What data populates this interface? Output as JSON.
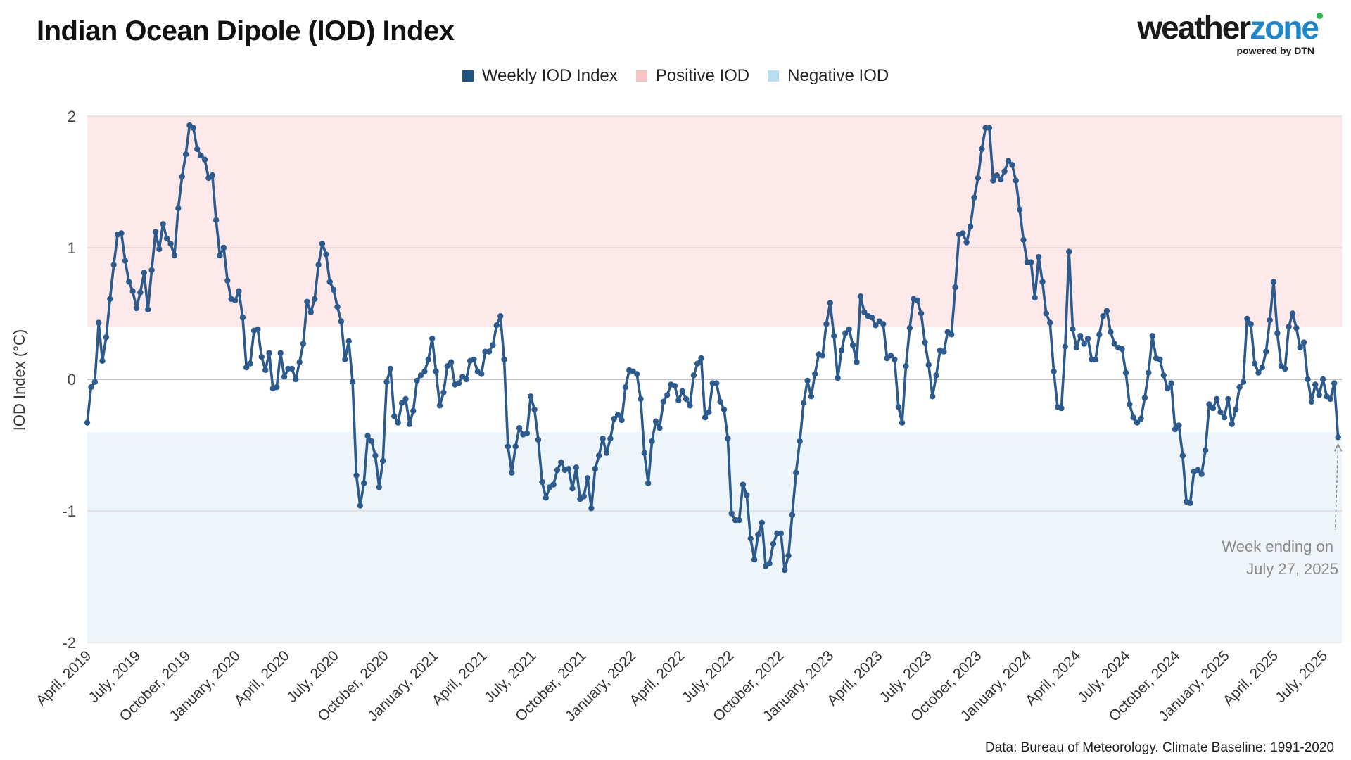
{
  "title": "Indian Ocean Dipole (IOD) Index",
  "logo": {
    "main_dark": "weather",
    "main_accent": "zone",
    "sub": "powered by DTN"
  },
  "legend": [
    {
      "label": "Weekly IOD Index",
      "color": "#1f5480"
    },
    {
      "label": "Positive IOD",
      "color": "#f8c4c8"
    },
    {
      "label": "Negative IOD",
      "color": "#b9dff0"
    }
  ],
  "source": "Data: Bureau of Meteorology. Climate Baseline: 1991-2020",
  "colors": {
    "line": "#2d5a8c",
    "positive_band": "#fde8ea",
    "negative_band": "#edf5fb",
    "gridline": "#d8d0d0",
    "zeroline": "#999999"
  },
  "chart_data": {
    "type": "line",
    "title": "Indian Ocean Dipole (IOD) Index",
    "xlabel": "",
    "ylabel": "IOD Index (°C)",
    "ylim": [
      -2,
      2
    ],
    "yticks": [
      2,
      1,
      0,
      -1,
      -2
    ],
    "thresholds": {
      "positive": 0.4,
      "negative": -0.4
    },
    "xlim": [
      "2019-03-31",
      "2025-08-03"
    ],
    "xtick_labels": [
      "April, 2019",
      "July, 2019",
      "October, 2019",
      "January, 2020",
      "April, 2020",
      "July, 2020",
      "October, 2020",
      "January, 2021",
      "April, 2021",
      "July, 2021",
      "October, 2021",
      "January, 2022",
      "April, 2022",
      "July, 2022",
      "October, 2022",
      "January, 2023",
      "April, 2023",
      "July, 2023",
      "October, 2023",
      "January, 2024",
      "April, 2024",
      "July, 2024",
      "October, 2024",
      "January, 2025",
      "April, 2025",
      "July, 2025"
    ],
    "xtick_dates": [
      "2019-04-01",
      "2019-07-01",
      "2019-10-01",
      "2020-01-01",
      "2020-04-01",
      "2020-07-01",
      "2020-10-01",
      "2021-01-01",
      "2021-04-01",
      "2021-07-01",
      "2021-10-01",
      "2022-01-01",
      "2022-04-01",
      "2022-07-01",
      "2022-10-01",
      "2023-01-01",
      "2023-04-01",
      "2023-07-01",
      "2023-10-01",
      "2024-01-01",
      "2024-04-01",
      "2024-07-01",
      "2024-10-01",
      "2025-01-01",
      "2025-04-01",
      "2025-07-01"
    ],
    "series": [
      {
        "name": "Weekly IOD Index",
        "first_week_ending": "2019-03-31",
        "interval_days": 7,
        "values": [
          -0.33,
          -0.06,
          -0.02,
          0.43,
          0.14,
          0.32,
          0.61,
          0.87,
          1.1,
          1.11,
          0.9,
          0.74,
          0.67,
          0.54,
          0.66,
          0.81,
          0.53,
          0.83,
          1.12,
          0.99,
          1.18,
          1.07,
          1.03,
          0.94,
          1.3,
          1.54,
          1.71,
          1.93,
          1.91,
          1.75,
          1.7,
          1.67,
          1.53,
          1.55,
          1.21,
          0.94,
          1.0,
          0.75,
          0.61,
          0.6,
          0.67,
          0.47,
          0.09,
          0.12,
          0.37,
          0.38,
          0.17,
          0.07,
          0.2,
          -0.07,
          -0.06,
          0.2,
          0.02,
          0.08,
          0.08,
          0.0,
          0.13,
          0.27,
          0.59,
          0.51,
          0.61,
          0.87,
          1.03,
          0.95,
          0.74,
          0.68,
          0.55,
          0.44,
          0.15,
          0.29,
          -0.02,
          -0.73,
          -0.96,
          -0.79,
          -0.43,
          -0.47,
          -0.58,
          -0.82,
          -0.62,
          -0.02,
          0.08,
          -0.28,
          -0.33,
          -0.18,
          -0.15,
          -0.34,
          -0.24,
          -0.01,
          0.03,
          0.06,
          0.15,
          0.31,
          0.06,
          -0.2,
          -0.1,
          0.1,
          0.13,
          -0.04,
          -0.03,
          0.02,
          0.0,
          0.14,
          0.15,
          0.06,
          0.04,
          0.21,
          0.21,
          0.26,
          0.41,
          0.48,
          0.15,
          -0.51,
          -0.71,
          -0.51,
          -0.37,
          -0.42,
          -0.41,
          -0.13,
          -0.23,
          -0.46,
          -0.78,
          -0.9,
          -0.82,
          -0.8,
          -0.69,
          -0.63,
          -0.69,
          -0.68,
          -0.83,
          -0.67,
          -0.91,
          -0.89,
          -0.75,
          -0.98,
          -0.68,
          -0.58,
          -0.45,
          -0.56,
          -0.45,
          -0.3,
          -0.27,
          -0.31,
          -0.06,
          0.07,
          0.06,
          0.04,
          -0.15,
          -0.56,
          -0.79,
          -0.47,
          -0.32,
          -0.37,
          -0.17,
          -0.12,
          -0.04,
          -0.05,
          -0.16,
          -0.09,
          -0.15,
          -0.2,
          0.03,
          0.12,
          0.16,
          -0.29,
          -0.25,
          -0.03,
          -0.03,
          -0.17,
          -0.23,
          -0.45,
          -1.02,
          -1.07,
          -1.07,
          -0.8,
          -0.88,
          -1.21,
          -1.37,
          -1.18,
          -1.09,
          -1.42,
          -1.4,
          -1.25,
          -1.17,
          -1.17,
          -1.45,
          -1.34,
          -1.03,
          -0.71,
          -0.47,
          -0.18,
          -0.01,
          -0.13,
          0.04,
          0.19,
          0.18,
          0.42,
          0.58,
          0.33,
          0.01,
          0.22,
          0.35,
          0.38,
          0.26,
          0.13,
          0.63,
          0.51,
          0.48,
          0.47,
          0.41,
          0.44,
          0.42,
          0.16,
          0.18,
          0.15,
          -0.21,
          -0.33,
          0.1,
          0.39,
          0.61,
          0.6,
          0.5,
          0.28,
          0.11,
          -0.13,
          0.03,
          0.22,
          0.21,
          0.36,
          0.34,
          0.7,
          1.1,
          1.11,
          1.04,
          1.16,
          1.38,
          1.53,
          1.75,
          1.91,
          1.91,
          1.51,
          1.55,
          1.52,
          1.58,
          1.66,
          1.63,
          1.51,
          1.29,
          1.06,
          0.89,
          0.89,
          0.62,
          0.93,
          0.74,
          0.5,
          0.43,
          0.06,
          -0.21,
          -0.22,
          0.25,
          0.97,
          0.38,
          0.24,
          0.33,
          0.27,
          0.31,
          0.15,
          0.15,
          0.34,
          0.48,
          0.52,
          0.36,
          0.27,
          0.24,
          0.23,
          0.05,
          -0.19,
          -0.29,
          -0.33,
          -0.3,
          -0.14,
          0.05,
          0.33,
          0.16,
          0.15,
          0.03,
          -0.07,
          -0.03,
          -0.38,
          -0.35,
          -0.58,
          -0.93,
          -0.94,
          -0.7,
          -0.69,
          -0.72,
          -0.54,
          -0.19,
          -0.22,
          -0.15,
          -0.25,
          -0.29,
          -0.15,
          -0.34,
          -0.23,
          -0.06,
          -0.02,
          0.46,
          0.42,
          0.12,
          0.05,
          0.09,
          0.21,
          0.45,
          0.74,
          0.35,
          0.1,
          0.08,
          0.4,
          0.5,
          0.39,
          0.24,
          0.28,
          0.0,
          -0.17,
          -0.04,
          -0.12,
          0.0,
          -0.13,
          -0.15,
          -0.03,
          -0.44
        ]
      }
    ],
    "annotation": {
      "line1": "Week ending on",
      "line2": "July 27, 2025"
    }
  }
}
